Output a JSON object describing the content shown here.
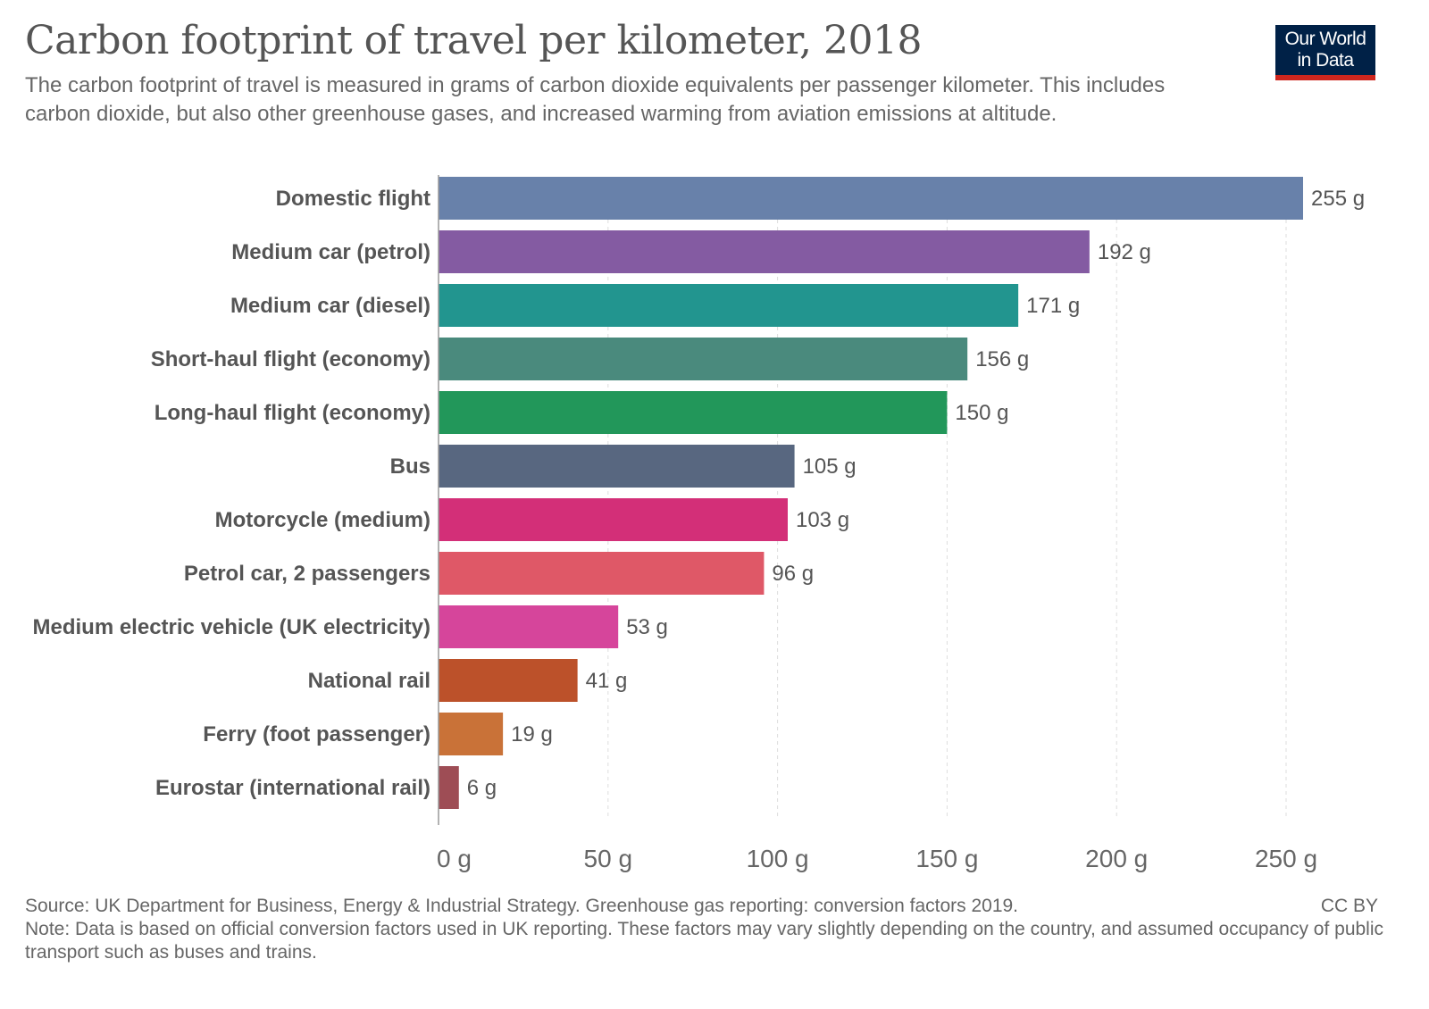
{
  "title": "Carbon footprint of travel per kilometer, 2018",
  "subtitle": "The carbon footprint of travel is measured in grams of carbon dioxide equivalents per passenger kilometer. This includes carbon dioxide, but also other greenhouse gases, and increased warming from aviation emissions at altitude.",
  "logo": {
    "line1": "Our World",
    "line2": "in Data"
  },
  "footer": {
    "source": "Source: UK Department for Business, Energy & Industrial Strategy. Greenhouse gas reporting: conversion factors 2019.",
    "license": "CC BY",
    "note": "Note: Data is based on official conversion factors used in UK reporting. These factors may vary slightly depending on the country, and assumed occupancy of public transport such as buses and trains."
  },
  "chart_data": {
    "type": "bar",
    "orientation": "horizontal",
    "categories": [
      "Domestic flight",
      "Medium car (petrol)",
      "Medium car (diesel)",
      "Short-haul flight (economy)",
      "Long-haul flight (economy)",
      "Bus",
      "Motorcycle (medium)",
      "Petrol car, 2 passengers",
      "Medium electric vehicle (UK electricity)",
      "National rail",
      "Ferry (foot passenger)",
      "Eurostar (international rail)"
    ],
    "values": [
      255,
      192,
      171,
      156,
      150,
      105,
      103,
      96,
      53,
      41,
      19,
      6
    ],
    "value_labels": [
      "255 g",
      "192 g",
      "171 g",
      "156 g",
      "150 g",
      "105 g",
      "103 g",
      "96 g",
      "53 g",
      "41 g",
      "19 g",
      "6 g"
    ],
    "colors": [
      "#6881aa",
      "#845ba2",
      "#22958f",
      "#4a8a7d",
      "#22975a",
      "#586780",
      "#d32f78",
      "#df5867",
      "#d6459b",
      "#bc512a",
      "#c97238",
      "#9e4d55"
    ],
    "xticks": [
      0,
      50,
      100,
      150,
      200,
      250
    ],
    "xtick_labels": [
      "0 g",
      "50 g",
      "100 g",
      "150 g",
      "200 g",
      "250 g"
    ],
    "xlim": [
      0,
      255
    ],
    "grid": true
  }
}
